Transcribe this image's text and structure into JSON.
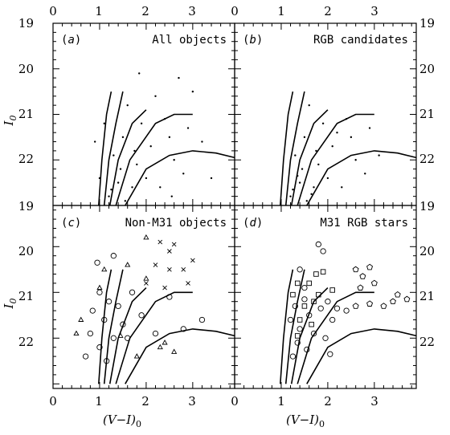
{
  "chart_data": {
    "type": "scatter",
    "x_tick_labels": [
      "0",
      "1",
      "2",
      "3"
    ],
    "y_tick_labels": [
      "19",
      "20",
      "21",
      "22"
    ],
    "xlim": [
      0,
      3.9
    ],
    "ylim_top": [
      19,
      23
    ],
    "ylim_bottom": [
      19.1,
      23.1
    ],
    "xlabel": "(V−I)",
    "xlabel_sub": "0",
    "ylabel": "I",
    "ylabel_sub": "0",
    "grid": false,
    "panels": [
      {
        "id": "a",
        "letter": "a",
        "title": "All objects",
        "position": "top-left",
        "tracks": [
          [
            [
              0.98,
              23
            ],
            [
              1.05,
              22
            ],
            [
              1.15,
              21
            ],
            [
              1.25,
              20.5
            ]
          ],
          [
            [
              1.1,
              23
            ],
            [
              1.2,
              22
            ],
            [
              1.35,
              21.2
            ],
            [
              1.5,
              20.5
            ]
          ],
          [
            [
              1.22,
              23
            ],
            [
              1.4,
              22
            ],
            [
              1.7,
              21.2
            ],
            [
              2.0,
              20.9
            ]
          ],
          [
            [
              1.35,
              23
            ],
            [
              1.65,
              22
            ],
            [
              2.2,
              21.2
            ],
            [
              2.6,
              21.0
            ],
            [
              3.0,
              21.0
            ]
          ],
          [
            [
              1.55,
              23
            ],
            [
              2.0,
              22.2
            ],
            [
              2.5,
              21.9
            ],
            [
              3.0,
              21.8
            ],
            [
              3.5,
              21.85
            ],
            [
              3.9,
              21.95
            ]
          ]
        ],
        "points": [
          [
            1.2,
            22.8
          ],
          [
            1.4,
            22.5
          ],
          [
            1.8,
            22.1
          ],
          [
            2.1,
            21.7
          ],
          [
            2.5,
            21.5
          ],
          [
            1.0,
            22.4
          ],
          [
            1.55,
            22.9
          ],
          [
            1.7,
            22.6
          ],
          [
            1.3,
            21.9
          ],
          [
            2.3,
            22.6
          ],
          [
            2.8,
            22.3
          ],
          [
            1.9,
            21.2
          ],
          [
            1.6,
            20.8
          ],
          [
            2.2,
            20.6
          ],
          [
            2.7,
            20.2
          ],
          [
            3.0,
            20.5
          ],
          [
            1.1,
            21.2
          ],
          [
            0.9,
            21.6
          ],
          [
            1.45,
            22.2
          ],
          [
            2.0,
            22.4
          ],
          [
            2.6,
            22.0
          ],
          [
            3.2,
            21.6
          ],
          [
            1.75,
            21.8
          ],
          [
            2.4,
            21.1
          ],
          [
            1.25,
            22.65
          ],
          [
            1.5,
            21.5
          ],
          [
            2.9,
            21.3
          ],
          [
            1.85,
            20.1
          ],
          [
            2.55,
            22.8
          ],
          [
            3.4,
            22.4
          ]
        ]
      },
      {
        "id": "b",
        "letter": "b",
        "title": "RGB candidates",
        "position": "top-right",
        "tracks": [
          [
            [
              0.98,
              23
            ],
            [
              1.05,
              22
            ],
            [
              1.15,
              21
            ],
            [
              1.25,
              20.5
            ]
          ],
          [
            [
              1.1,
              23
            ],
            [
              1.2,
              22
            ],
            [
              1.35,
              21.2
            ],
            [
              1.5,
              20.5
            ]
          ],
          [
            [
              1.22,
              23
            ],
            [
              1.4,
              22
            ],
            [
              1.7,
              21.2
            ],
            [
              2.0,
              20.9
            ]
          ],
          [
            [
              1.35,
              23
            ],
            [
              1.65,
              22
            ],
            [
              2.2,
              21.2
            ],
            [
              2.6,
              21.0
            ],
            [
              3.0,
              21.0
            ]
          ],
          [
            [
              1.55,
              23
            ],
            [
              2.0,
              22.2
            ],
            [
              2.5,
              21.9
            ],
            [
              3.0,
              21.8
            ],
            [
              3.5,
              21.85
            ],
            [
              3.9,
              21.95
            ]
          ]
        ],
        "points": [
          [
            1.2,
            22.8
          ],
          [
            1.4,
            22.5
          ],
          [
            1.8,
            22.1
          ],
          [
            2.1,
            21.7
          ],
          [
            2.5,
            21.5
          ],
          [
            1.3,
            21.9
          ],
          [
            1.55,
            22.9
          ],
          [
            1.7,
            22.6
          ],
          [
            1.45,
            22.2
          ],
          [
            2.0,
            22.4
          ],
          [
            2.6,
            22.0
          ],
          [
            1.75,
            21.8
          ],
          [
            2.4,
            21.1
          ],
          [
            1.25,
            22.65
          ],
          [
            1.5,
            21.5
          ],
          [
            2.9,
            21.3
          ],
          [
            1.9,
            21.2
          ],
          [
            2.3,
            22.6
          ],
          [
            1.6,
            20.8
          ],
          [
            2.8,
            22.3
          ],
          [
            3.1,
            21.9
          ],
          [
            1.35,
            22.35
          ],
          [
            2.2,
            21.4
          ],
          [
            1.65,
            22.75
          ]
        ]
      },
      {
        "id": "c",
        "letter": "c",
        "title": "Non-M31 objects",
        "position": "bottom-left",
        "tracks": [
          [
            [
              0.98,
              23
            ],
            [
              1.05,
              22
            ],
            [
              1.15,
              21
            ],
            [
              1.25,
              20.5
            ]
          ],
          [
            [
              1.1,
              23
            ],
            [
              1.2,
              22
            ],
            [
              1.35,
              21.2
            ],
            [
              1.5,
              20.5
            ]
          ],
          [
            [
              1.22,
              23
            ],
            [
              1.4,
              22
            ],
            [
              1.7,
              21.2
            ],
            [
              2.0,
              20.9
            ]
          ],
          [
            [
              1.35,
              23
            ],
            [
              1.65,
              22
            ],
            [
              2.2,
              21.2
            ],
            [
              2.6,
              21.0
            ],
            [
              3.0,
              21.0
            ]
          ],
          [
            [
              1.55,
              23
            ],
            [
              2.0,
              22.2
            ],
            [
              2.5,
              21.9
            ],
            [
              3.0,
              21.8
            ],
            [
              3.5,
              21.85
            ],
            [
              3.9,
              21.95
            ]
          ]
        ],
        "markers": [
          {
            "shape": "circle",
            "points": [
              [
                0.95,
                20.35
              ],
              [
                1.3,
                20.2
              ],
              [
                1.0,
                21.0
              ],
              [
                1.2,
                21.2
              ],
              [
                1.4,
                21.3
              ],
              [
                1.1,
                21.6
              ],
              [
                0.8,
                21.9
              ],
              [
                1.5,
                21.7
              ],
              [
                1.3,
                22.0
              ],
              [
                1.0,
                22.2
              ],
              [
                0.7,
                22.4
              ],
              [
                1.6,
                22.0
              ],
              [
                1.9,
                21.5
              ],
              [
                2.2,
                21.9
              ],
              [
                2.5,
                21.1
              ],
              [
                2.8,
                21.8
              ],
              [
                3.2,
                21.6
              ],
              [
                1.7,
                21.0
              ],
              [
                1.15,
                22.5
              ],
              [
                0.85,
                21.4
              ]
            ]
          },
          {
            "shape": "triangle",
            "points": [
              [
                1.1,
                20.5
              ],
              [
                1.6,
                20.4
              ],
              [
                2.0,
                20.7
              ],
              [
                0.6,
                21.6
              ],
              [
                0.5,
                21.9
              ],
              [
                1.45,
                21.95
              ],
              [
                2.3,
                22.2
              ],
              [
                2.6,
                22.3
              ],
              [
                1.8,
                22.4
              ],
              [
                2.4,
                22.1
              ],
              [
                1.0,
                20.9
              ],
              [
                2.0,
                19.8
              ]
            ]
          },
          {
            "shape": "cross",
            "points": [
              [
                2.3,
                19.9
              ],
              [
                2.5,
                20.1
              ],
              [
                2.6,
                19.95
              ],
              [
                2.2,
                20.4
              ],
              [
                2.5,
                20.5
              ],
              [
                2.8,
                20.5
              ],
              [
                3.0,
                20.3
              ],
              [
                2.0,
                20.8
              ],
              [
                2.4,
                20.9
              ],
              [
                2.9,
                20.8
              ]
            ]
          }
        ]
      },
      {
        "id": "d",
        "letter": "d",
        "title": "M31 RGB stars",
        "position": "bottom-right",
        "tracks": [
          [
            [
              0.98,
              23
            ],
            [
              1.05,
              22
            ],
            [
              1.15,
              21
            ],
            [
              1.25,
              20.5
            ]
          ],
          [
            [
              1.1,
              23
            ],
            [
              1.2,
              22
            ],
            [
              1.35,
              21.2
            ],
            [
              1.5,
              20.5
            ]
          ],
          [
            [
              1.22,
              23
            ],
            [
              1.4,
              22
            ],
            [
              1.7,
              21.2
            ],
            [
              2.0,
              20.9
            ]
          ],
          [
            [
              1.35,
              23
            ],
            [
              1.65,
              22
            ],
            [
              2.2,
              21.2
            ],
            [
              2.6,
              21.0
            ],
            [
              3.0,
              21.0
            ]
          ],
          [
            [
              1.55,
              23
            ],
            [
              2.0,
              22.2
            ],
            [
              2.5,
              21.9
            ],
            [
              3.0,
              21.8
            ],
            [
              3.5,
              21.85
            ],
            [
              3.9,
              21.95
            ]
          ]
        ],
        "markers": [
          {
            "shape": "circle",
            "points": [
              [
                1.8,
                19.95
              ],
              [
                1.9,
                20.1
              ],
              [
                1.4,
                20.5
              ],
              [
                1.5,
                20.9
              ],
              [
                1.3,
                21.3
              ],
              [
                1.2,
                21.6
              ],
              [
                1.4,
                21.8
              ],
              [
                1.35,
                22.1
              ],
              [
                1.6,
                21.5
              ],
              [
                1.7,
                21.9
              ],
              [
                2.0,
                21.2
              ],
              [
                2.1,
                21.6
              ],
              [
                1.5,
                21.15
              ],
              [
                1.85,
                21.35
              ],
              [
                2.2,
                21.35
              ],
              [
                2.4,
                21.4
              ],
              [
                1.25,
                22.4
              ],
              [
                1.55,
                22.25
              ],
              [
                1.95,
                22.0
              ],
              [
                2.05,
                22.35
              ]
            ]
          },
          {
            "shape": "square",
            "points": [
              [
                1.35,
                20.8
              ],
              [
                1.6,
                20.8
              ],
              [
                1.5,
                21.3
              ],
              [
                1.7,
                21.2
              ],
              [
                1.75,
                20.6
              ],
              [
                1.9,
                20.55
              ],
              [
                1.25,
                21.05
              ],
              [
                1.4,
                21.6
              ],
              [
                1.65,
                21.7
              ],
              [
                1.8,
                21.05
              ],
              [
                2.1,
                20.95
              ],
              [
                1.35,
                21.95
              ]
            ]
          },
          {
            "shape": "pentagon",
            "points": [
              [
                2.6,
                20.5
              ],
              [
                2.9,
                20.45
              ],
              [
                3.0,
                20.8
              ],
              [
                2.7,
                20.9
              ],
              [
                3.5,
                21.05
              ],
              [
                3.4,
                21.2
              ],
              [
                3.2,
                21.3
              ],
              [
                2.9,
                21.25
              ],
              [
                3.7,
                21.15
              ],
              [
                2.6,
                21.3
              ],
              [
                2.75,
                20.65
              ]
            ]
          }
        ]
      }
    ]
  }
}
